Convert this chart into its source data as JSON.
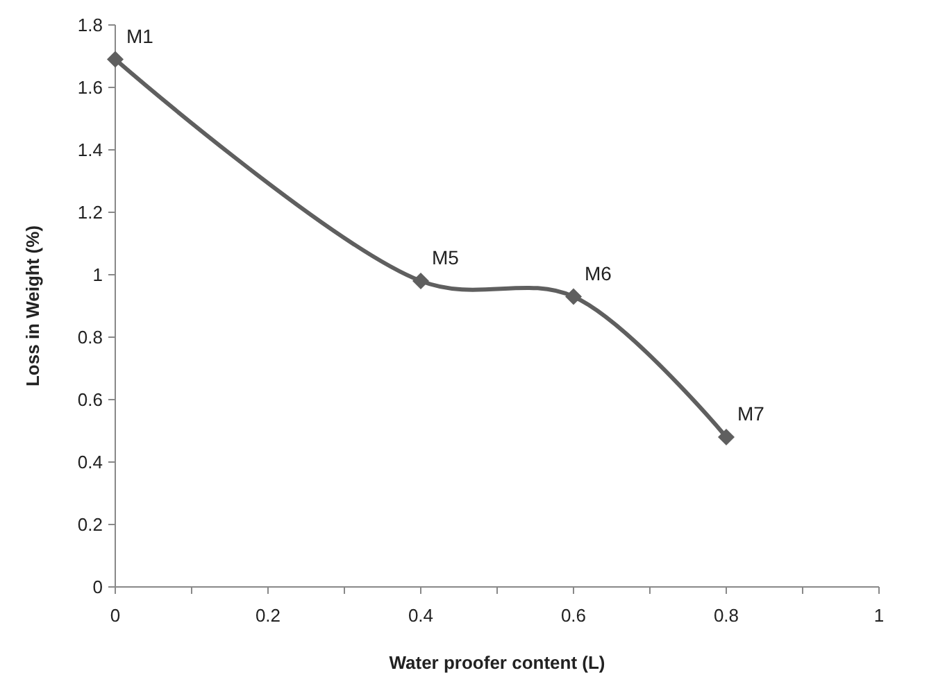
{
  "chart_data": {
    "type": "line",
    "xlabel": "Water proofer content (L)",
    "ylabel": "Loss in Weight (%)",
    "x": [
      0,
      0.4,
      0.6,
      0.8
    ],
    "series": [
      {
        "color": "#5f5f5f",
        "values": [
          1.69,
          0.98,
          0.93,
          0.48
        ]
      }
    ],
    "xlim": [
      0,
      1
    ],
    "xticks": [
      0,
      {
        "value": 0.1,
        "label": null
      },
      0.2,
      {
        "value": 0.3,
        "label": null
      },
      0.4,
      {
        "value": 0.5,
        "label": null
      },
      0.6,
      {
        "value": 0.7,
        "label": null
      },
      0.8,
      {
        "value": 0.9,
        "label": null
      },
      1
    ],
    "ylim": [
      0,
      1.8
    ],
    "yticks": [
      0,
      0.2,
      0.4,
      0.6,
      0.8,
      1,
      1.2,
      1.4,
      1.6,
      1.8
    ],
    "grid": false,
    "marker": "diamond",
    "line_style": "solid",
    "annotations": [
      {
        "text": "M1",
        "x": 0,
        "y": 1.69
      },
      {
        "text": "M5",
        "x": 0.4,
        "y": 0.98
      },
      {
        "text": "M6",
        "x": 0.6,
        "y": 0.93
      },
      {
        "text": "M7",
        "x": 0.8,
        "y": 0.48
      }
    ]
  }
}
